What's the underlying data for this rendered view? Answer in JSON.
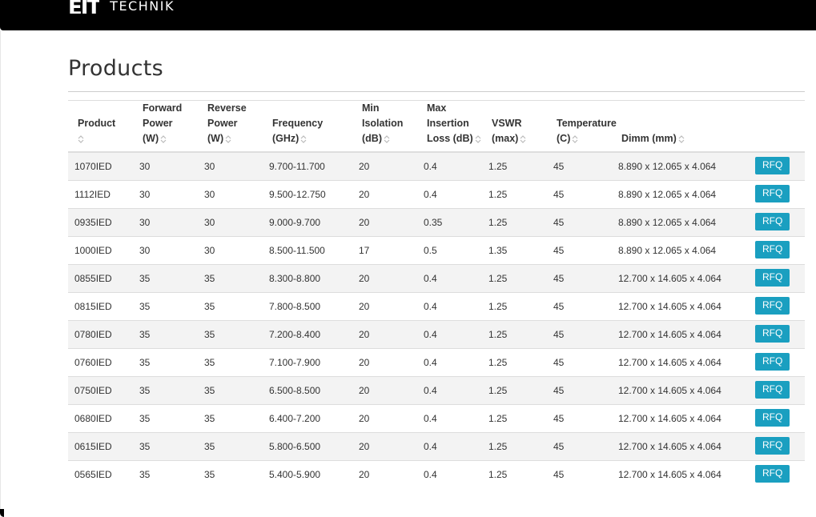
{
  "header": {
    "logo_mark": "EIT",
    "logo_text": "TECHNIK"
  },
  "page": {
    "title": "Products"
  },
  "table": {
    "columns": [
      {
        "lines": [
          "Product"
        ]
      },
      {
        "lines": [
          "Forward",
          "Power",
          "(W)"
        ]
      },
      {
        "lines": [
          "Reverse",
          "Power",
          "(W)"
        ]
      },
      {
        "lines": [
          "Frequency",
          "(GHz)"
        ]
      },
      {
        "lines": [
          "Min",
          "Isolation",
          "(dB)"
        ]
      },
      {
        "lines": [
          "Max",
          "Insertion",
          "Loss (dB)"
        ]
      },
      {
        "lines": [
          "VSWR",
          "(max)"
        ]
      },
      {
        "lines": [
          "Temperature",
          "(C)"
        ]
      },
      {
        "lines": [
          "Dimm (mm)"
        ]
      },
      {
        "lines": []
      }
    ],
    "rows": [
      [
        "1070IED",
        "30",
        "30",
        "9.700-11.700",
        "20",
        "0.4",
        "1.25",
        "45",
        "8.890 x 12.065 x 4.064"
      ],
      [
        "1112IED",
        "30",
        "30",
        "9.500-12.750",
        "20",
        "0.4",
        "1.25",
        "45",
        "8.890 x 12.065 x 4.064"
      ],
      [
        "0935IED",
        "30",
        "30",
        "9.000-9.700",
        "20",
        "0.35",
        "1.25",
        "45",
        "8.890 x 12.065 x 4.064"
      ],
      [
        "1000IED",
        "30",
        "30",
        "8.500-11.500",
        "17",
        "0.5",
        "1.35",
        "45",
        "8.890 x 12.065 x 4.064"
      ],
      [
        "0855IED",
        "35",
        "35",
        "8.300-8.800",
        "20",
        "0.4",
        "1.25",
        "45",
        "12.700 x 14.605 x 4.064"
      ],
      [
        "0815IED",
        "35",
        "35",
        "7.800-8.500",
        "20",
        "0.4",
        "1.25",
        "45",
        "12.700 x 14.605 x 4.064"
      ],
      [
        "0780IED",
        "35",
        "35",
        "7.200-8.400",
        "20",
        "0.4",
        "1.25",
        "45",
        "12.700 x 14.605 x 4.064"
      ],
      [
        "0760IED",
        "35",
        "35",
        "7.100-7.900",
        "20",
        "0.4",
        "1.25",
        "45",
        "12.700 x 14.605 x 4.064"
      ],
      [
        "0750IED",
        "35",
        "35",
        "6.500-8.500",
        "20",
        "0.4",
        "1.25",
        "45",
        "12.700 x 14.605 x 4.064"
      ],
      [
        "0680IED",
        "35",
        "35",
        "6.400-7.200",
        "20",
        "0.4",
        "1.25",
        "45",
        "12.700 x 14.605 x 4.064"
      ],
      [
        "0615IED",
        "35",
        "35",
        "5.800-6.500",
        "20",
        "0.4",
        "1.25",
        "45",
        "12.700 x 14.605 x 4.064"
      ],
      [
        "0565IED",
        "35",
        "35",
        "5.400-5.900",
        "20",
        "0.4",
        "1.25",
        "45",
        "12.700 x 14.605 x 4.064"
      ]
    ],
    "rfq_label": "RFQ"
  },
  "colors": {
    "header_bg": "#000000",
    "rfq_button": "#1a9fc0",
    "stripe": "#f3f3f3"
  },
  "icons": {
    "sort": "sort-updown-icon"
  }
}
